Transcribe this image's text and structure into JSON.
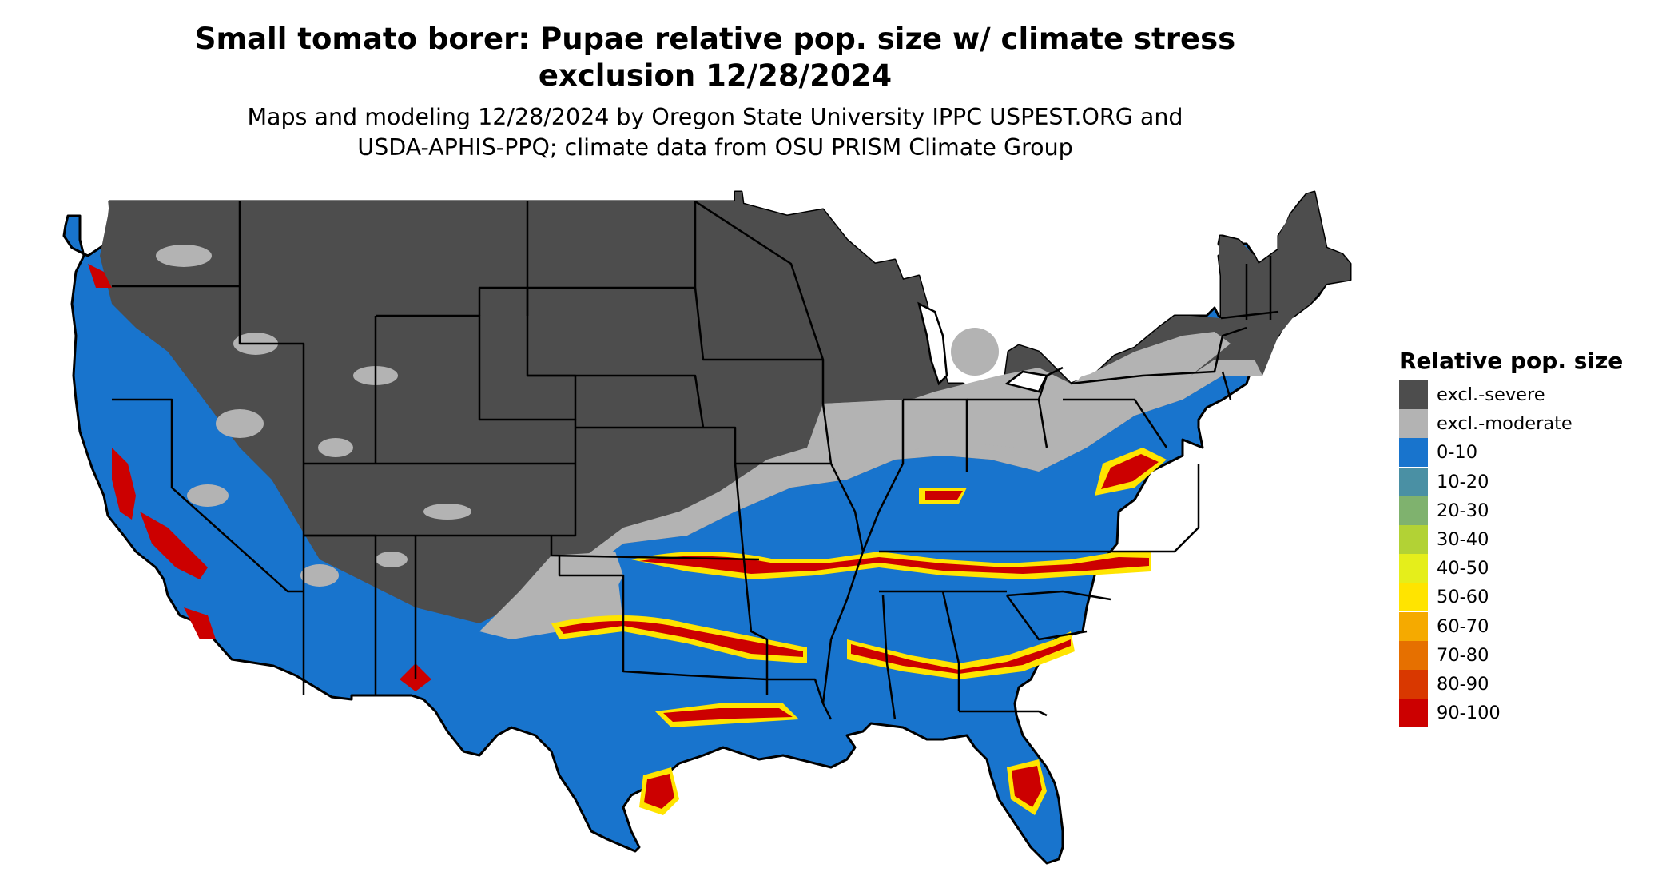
{
  "title_line1": "Small tomato borer: Pupae relative pop. size w/ climate stress",
  "title_line2": "exclusion 12/28/2024",
  "subtitle_line1": "Maps and modeling 12/28/2024 by Oregon State University IPPC USPEST.ORG and",
  "subtitle_line2": "USDA-APHIS-PPQ; climate data from OSU PRISM Climate Group",
  "legend": {
    "title": "Relative pop. size",
    "items": [
      {
        "label": "excl.-severe",
        "color": "#4d4d4d"
      },
      {
        "label": "excl.-moderate",
        "color": "#b3b3b3"
      },
      {
        "label": "0-10",
        "color": "#1874cd"
      },
      {
        "label": "10-20",
        "color": "#4a90a4"
      },
      {
        "label": "20-30",
        "color": "#7fb26e"
      },
      {
        "label": "30-40",
        "color": "#b2d235"
      },
      {
        "label": "40-50",
        "color": "#e5ee1b"
      },
      {
        "label": "50-60",
        "color": "#ffe400"
      },
      {
        "label": "60-70",
        "color": "#f5aa00"
      },
      {
        "label": "70-80",
        "color": "#e67000"
      },
      {
        "label": "80-90",
        "color": "#d93800"
      },
      {
        "label": "90-100",
        "color": "#cc0000"
      }
    ]
  }
}
